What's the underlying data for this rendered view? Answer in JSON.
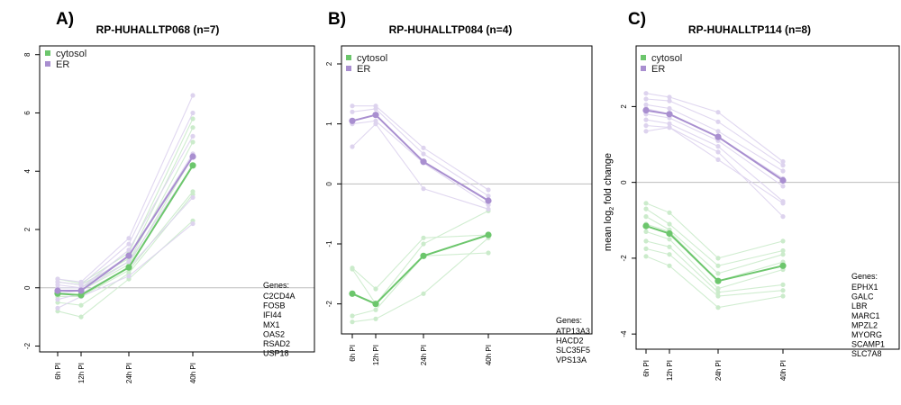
{
  "colors": {
    "cytosol": "#6cc66c",
    "cytosol_light": "#cbebcb",
    "er": "#a98fd0",
    "er_light": "#ddd3ee",
    "zero_line": "#bdbdbd"
  },
  "ylabel_main": "mean log",
  "ylabel_sub": "2",
  "ylabel_tail": " fold change",
  "chart_data": [
    {
      "type": "line",
      "panel_label": "A)",
      "title": "RP-HUHALLTP068 (n=7)",
      "categories": [
        "6h PI",
        "12h PI",
        "24h PI",
        "40h PI"
      ],
      "x": [
        6,
        12,
        24,
        40
      ],
      "ylim": [
        -2.2,
        8.3
      ],
      "yticks": [
        -2,
        0,
        2,
        4,
        6,
        8
      ],
      "show_ylabel": false,
      "legend": {
        "position": "top-left",
        "entries": [
          "cytosol",
          "ER"
        ]
      },
      "genes_header": "Genes:",
      "genes": [
        "C2CD4A",
        "FOSB",
        "IFI44",
        "MX1",
        "OAS2",
        "RSAD2",
        "USP18"
      ],
      "series": [
        {
          "name": "cytosol",
          "mean": [
            -0.2,
            -0.25,
            0.7,
            4.2
          ],
          "individual": [
            [
              -0.8,
              -1.0,
              0.3,
              2.3
            ],
            [
              -0.5,
              -0.6,
              0.5,
              3.2
            ],
            [
              -0.3,
              -0.3,
              0.6,
              3.3
            ],
            [
              -0.1,
              -0.1,
              0.8,
              4.5
            ],
            [
              0.0,
              0.0,
              0.9,
              5.0
            ],
            [
              0.2,
              0.1,
              1.0,
              5.5
            ],
            [
              0.3,
              0.15,
              1.2,
              5.8
            ]
          ]
        },
        {
          "name": "ER",
          "mean": [
            -0.1,
            -0.1,
            1.1,
            4.5
          ],
          "individual": [
            [
              -0.7,
              -0.3,
              0.4,
              2.2
            ],
            [
              -0.4,
              -0.2,
              0.7,
              3.1
            ],
            [
              -0.2,
              -0.1,
              0.9,
              4.2
            ],
            [
              0.0,
              0.0,
              1.1,
              4.6
            ],
            [
              0.1,
              0.0,
              1.3,
              5.2
            ],
            [
              0.2,
              0.1,
              1.5,
              6.0
            ],
            [
              0.3,
              0.2,
              1.7,
              6.6
            ]
          ]
        }
      ]
    },
    {
      "type": "line",
      "panel_label": "B)",
      "title": "RP-HUHALLTP084 (n=4)",
      "categories": [
        "6h PI",
        "12h PI",
        "24h PI",
        "40h PI"
      ],
      "x": [
        6,
        12,
        24,
        40
      ],
      "ylim": [
        -2.5,
        2.3
      ],
      "yticks": [
        -2,
        -1,
        0,
        1,
        2
      ],
      "show_ylabel": false,
      "legend": {
        "position": "top-left",
        "entries": [
          "cytosol",
          "ER"
        ]
      },
      "genes_header": "Genes:",
      "genes": [
        "ATP13A3",
        "HACD2",
        "SLC35F5",
        "VPS13A"
      ],
      "series": [
        {
          "name": "cytosol",
          "mean": [
            -1.83,
            -2.0,
            -1.2,
            -0.85
          ],
          "individual": [
            [
              -1.4,
              -1.75,
              -0.9,
              -0.85
            ],
            [
              -1.42,
              -2.0,
              -1.0,
              -0.45
            ],
            [
              -2.2,
              -2.1,
              -1.2,
              -1.15
            ],
            [
              -2.3,
              -2.25,
              -1.83,
              -0.9
            ]
          ]
        },
        {
          "name": "ER",
          "mean": [
            1.05,
            1.15,
            0.37,
            -0.28
          ],
          "individual": [
            [
              1.3,
              1.3,
              0.6,
              -0.1
            ],
            [
              1.2,
              1.25,
              0.5,
              -0.2
            ],
            [
              1.0,
              1.05,
              0.35,
              -0.35
            ],
            [
              0.62,
              1.0,
              -0.08,
              -0.42
            ]
          ]
        }
      ]
    },
    {
      "type": "line",
      "panel_label": "C)",
      "title": "RP-HUHALLTP114 (n=8)",
      "categories": [
        "6h PI",
        "12h PI",
        "24h PI",
        "40h PI"
      ],
      "x": [
        6,
        12,
        24,
        40
      ],
      "ylim": [
        -4.4,
        3.6
      ],
      "yticks": [
        -4,
        -2,
        0,
        2
      ],
      "show_ylabel": true,
      "legend": {
        "position": "top-left",
        "entries": [
          "cytosol",
          "ER"
        ]
      },
      "genes_header": "Genes:",
      "genes": [
        "EPHX1",
        "GALC",
        "LBR",
        "MARC1",
        "MPZL2",
        "MYORG",
        "SCAMP1",
        "SLC7A8"
      ],
      "series": [
        {
          "name": "cytosol",
          "mean": [
            -1.15,
            -1.35,
            -2.6,
            -2.2
          ],
          "individual": [
            [
              -0.55,
              -0.8,
              -2.0,
              -1.55
            ],
            [
              -0.7,
              -1.1,
              -2.2,
              -1.8
            ],
            [
              -0.9,
              -1.25,
              -2.4,
              -1.9
            ],
            [
              -1.1,
              -1.3,
              -2.6,
              -2.1
            ],
            [
              -1.3,
              -1.5,
              -2.8,
              -2.3
            ],
            [
              -1.55,
              -1.7,
              -2.9,
              -2.7
            ],
            [
              -1.75,
              -1.9,
              -3.0,
              -2.85
            ],
            [
              -1.95,
              -2.2,
              -3.3,
              -3.0
            ]
          ]
        },
        {
          "name": "ER",
          "mean": [
            1.9,
            1.8,
            1.2,
            0.05
          ],
          "individual": [
            [
              2.35,
              2.25,
              1.85,
              0.55
            ],
            [
              2.2,
              2.15,
              1.6,
              0.45
            ],
            [
              2.05,
              1.95,
              1.35,
              0.3
            ],
            [
              1.95,
              1.8,
              1.2,
              0.1
            ],
            [
              1.8,
              1.7,
              1.1,
              -0.1
            ],
            [
              1.65,
              1.55,
              0.95,
              -0.5
            ],
            [
              1.5,
              1.45,
              0.8,
              -0.9
            ],
            [
              1.35,
              1.45,
              0.6,
              -0.55
            ]
          ]
        }
      ]
    }
  ]
}
